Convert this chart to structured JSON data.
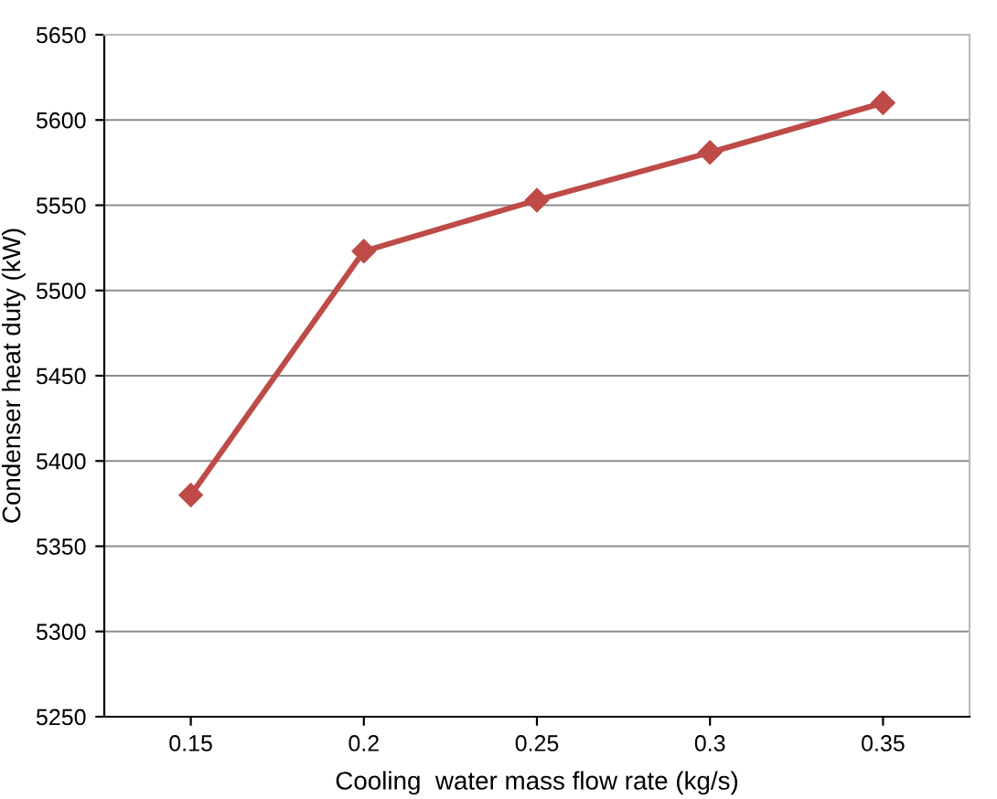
{
  "chart_data": {
    "type": "line",
    "xlabel": "Cooling  water mass flow rate (kg/s)",
    "ylabel": "Condenser heat duty (kW)",
    "categories": [
      "0.15",
      "0.2",
      "0.25",
      "0.3",
      "0.35"
    ],
    "series": [
      {
        "color": "#be4b48",
        "values": [
          5380,
          5523,
          5553,
          5581,
          5610
        ]
      }
    ],
    "ylim": [
      5250,
      5650
    ],
    "yticks": [
      5250,
      5300,
      5350,
      5400,
      5450,
      5500,
      5550,
      5600,
      5650
    ],
    "grid": "y",
    "marker": "diamond",
    "line_style": "solid",
    "legend": false
  }
}
